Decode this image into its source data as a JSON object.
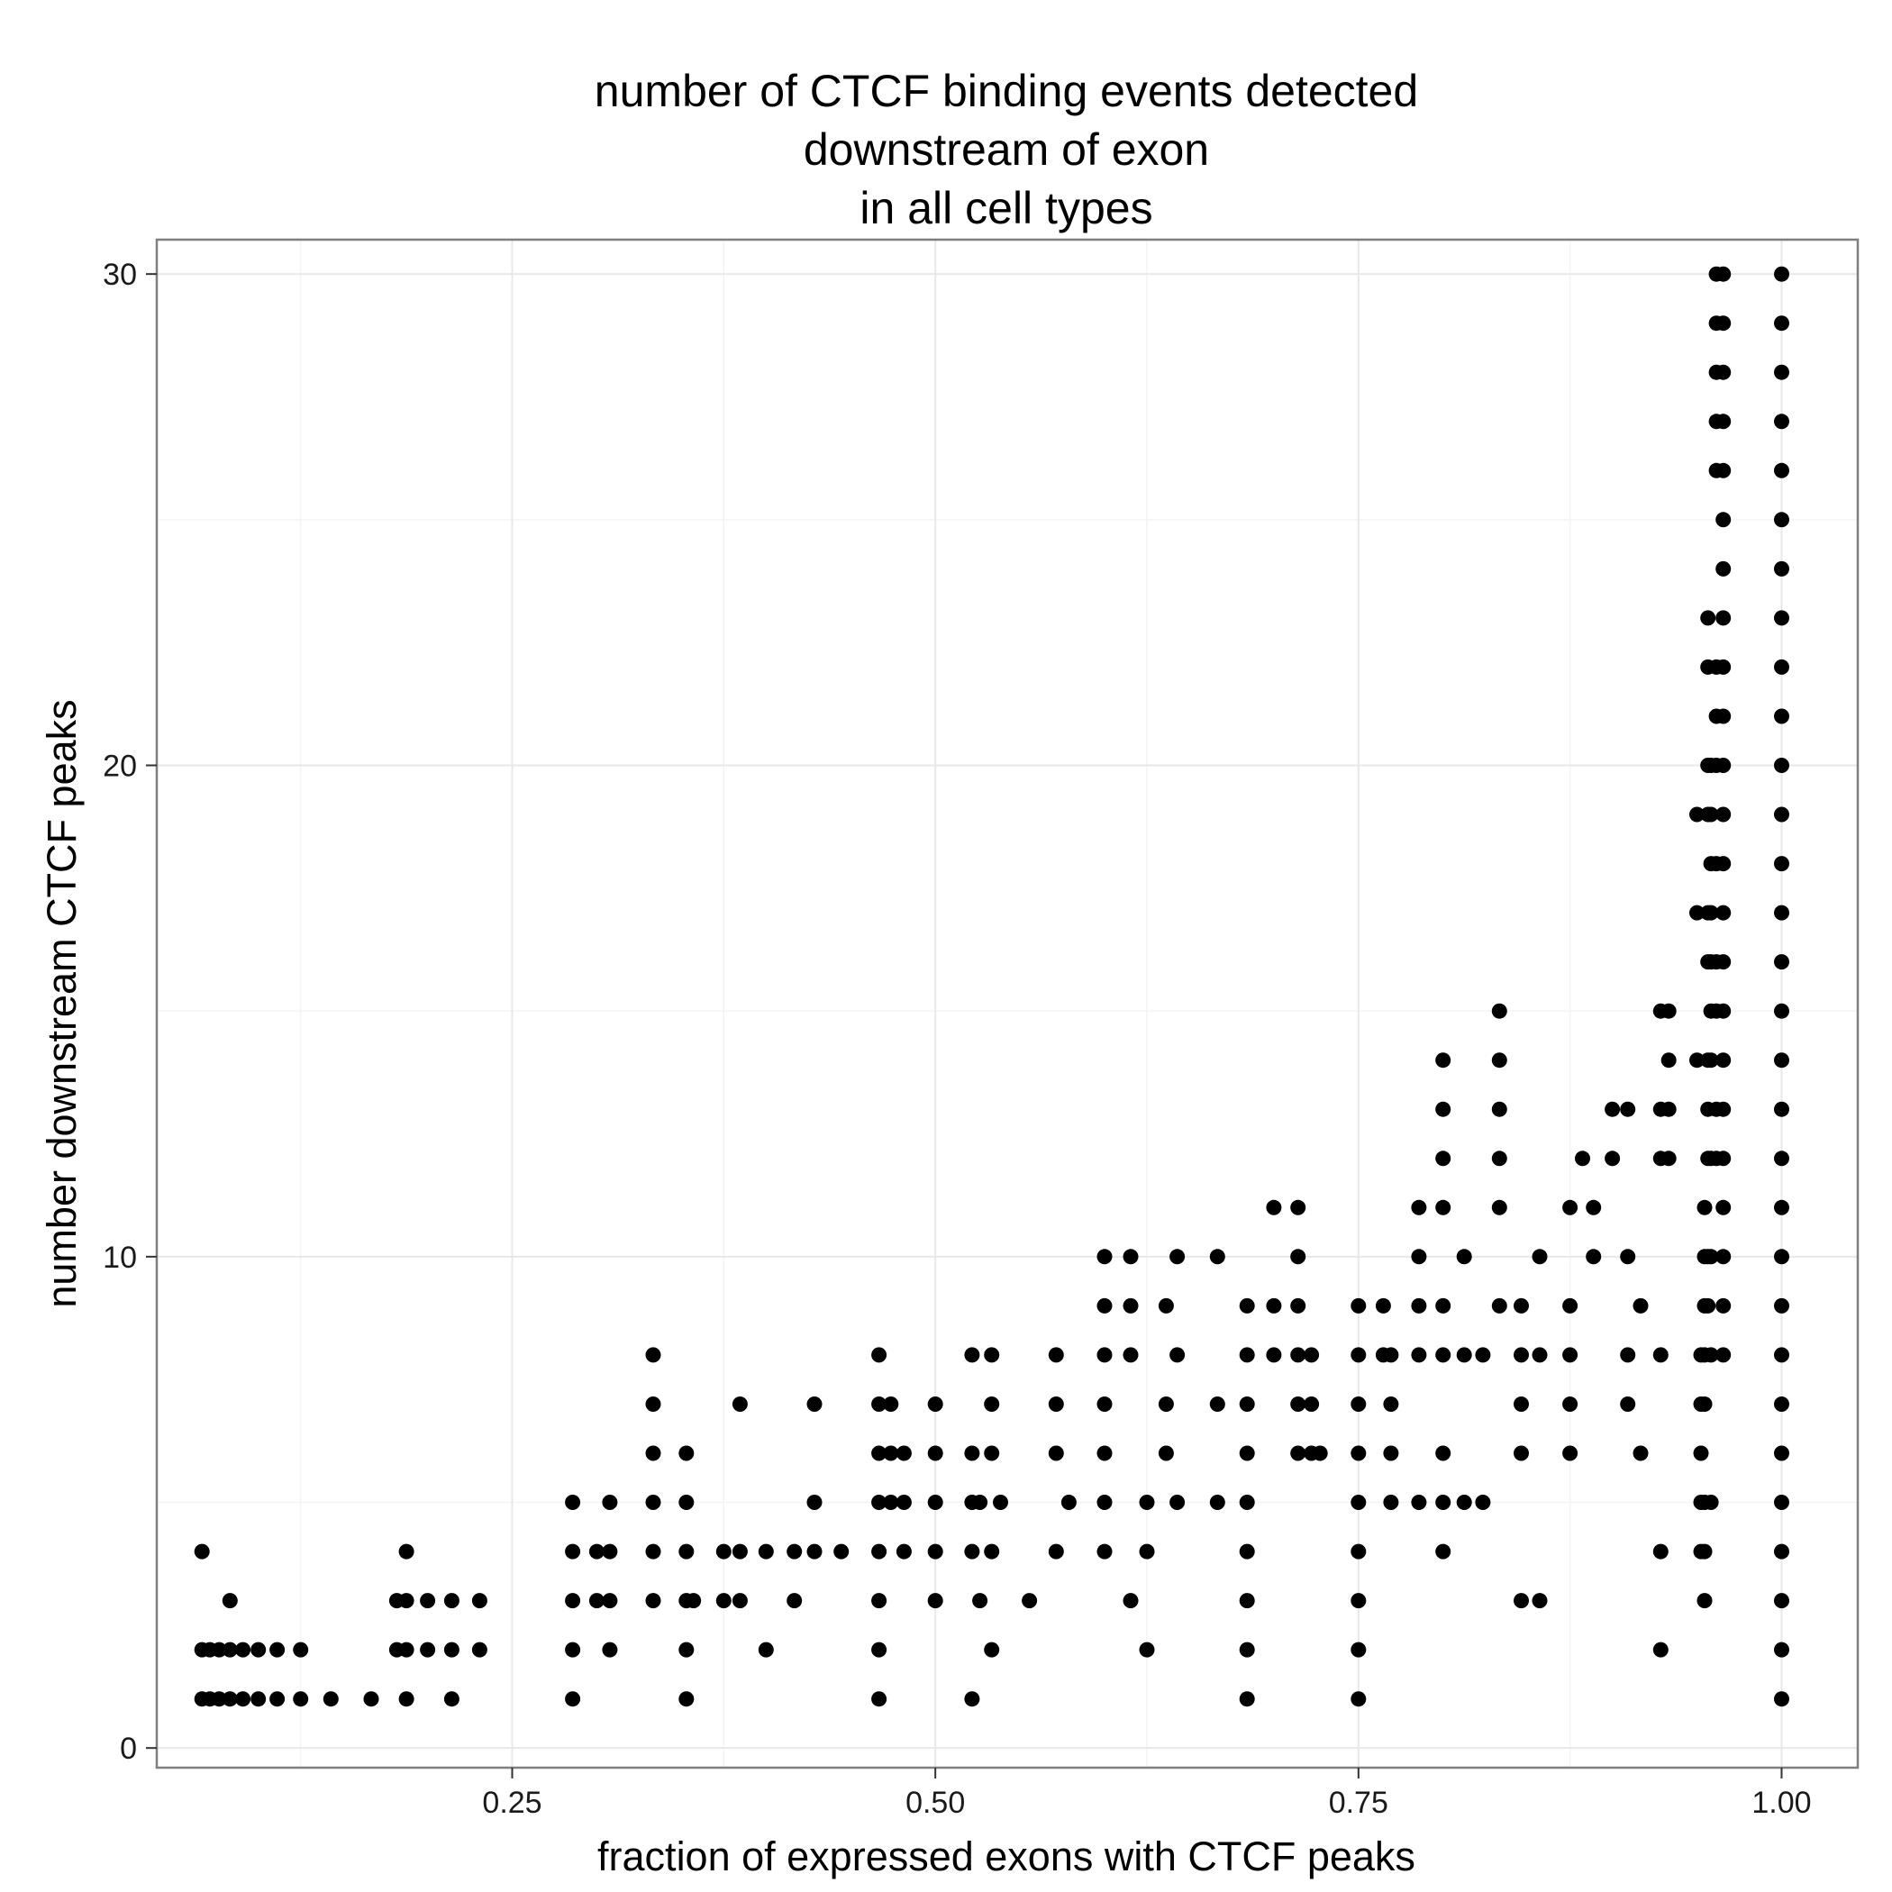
{
  "chart_data": {
    "type": "scatter",
    "title": [
      "number of CTCF binding events detected",
      "downstream of exon",
      "in all cell types"
    ],
    "xlabel": "fraction of expressed exons with CTCF peaks",
    "ylabel": "number downstream CTCF peaks",
    "xlim": [
      0.04,
      1.045
    ],
    "ylim": [
      -0.4,
      30.7
    ],
    "xticks": [
      0.25,
      0.5,
      0.75,
      1.0
    ],
    "xtick_labels": [
      "0.25",
      "0.50",
      "0.75",
      "1.00"
    ],
    "yticks": [
      0,
      10,
      20,
      30
    ],
    "ytick_labels": [
      "0",
      "10",
      "20",
      "30"
    ],
    "grid": true,
    "legend": "none",
    "colors": {
      "point": "#000000",
      "panel_border": "#7f7f7f"
    },
    "points": [
      [
        0.0667,
        1
      ],
      [
        0.0667,
        2
      ],
      [
        0.0667,
        4
      ],
      [
        0.0714,
        1
      ],
      [
        0.0714,
        2
      ],
      [
        0.0769,
        1
      ],
      [
        0.0769,
        2
      ],
      [
        0.0833,
        1
      ],
      [
        0.0833,
        2
      ],
      [
        0.0833,
        3
      ],
      [
        0.0909,
        1
      ],
      [
        0.0909,
        2
      ],
      [
        0.1,
        1
      ],
      [
        0.1,
        2
      ],
      [
        0.1111,
        1
      ],
      [
        0.1111,
        2
      ],
      [
        0.125,
        1
      ],
      [
        0.125,
        2
      ],
      [
        0.1429,
        1
      ],
      [
        0.1667,
        1
      ],
      [
        0.1818,
        2
      ],
      [
        0.1818,
        3
      ],
      [
        0.1875,
        1
      ],
      [
        0.1875,
        2
      ],
      [
        0.1875,
        3
      ],
      [
        0.1875,
        4
      ],
      [
        0.2,
        2
      ],
      [
        0.2,
        3
      ],
      [
        0.2143,
        1
      ],
      [
        0.2143,
        2
      ],
      [
        0.2143,
        3
      ],
      [
        0.2308,
        2
      ],
      [
        0.2308,
        3
      ],
      [
        0.2857,
        1
      ],
      [
        0.2857,
        2
      ],
      [
        0.2857,
        3
      ],
      [
        0.2857,
        4
      ],
      [
        0.2857,
        5
      ],
      [
        0.3,
        3
      ],
      [
        0.3,
        4
      ],
      [
        0.3077,
        2
      ],
      [
        0.3077,
        3
      ],
      [
        0.3077,
        4
      ],
      [
        0.3077,
        5
      ],
      [
        0.3333,
        3
      ],
      [
        0.3333,
        4
      ],
      [
        0.3333,
        5
      ],
      [
        0.3333,
        6
      ],
      [
        0.3333,
        7
      ],
      [
        0.3333,
        8
      ],
      [
        0.3529,
        1
      ],
      [
        0.3529,
        2
      ],
      [
        0.3529,
        3
      ],
      [
        0.3529,
        4
      ],
      [
        0.3529,
        5
      ],
      [
        0.3529,
        6
      ],
      [
        0.3571,
        3
      ],
      [
        0.375,
        3
      ],
      [
        0.375,
        4
      ],
      [
        0.3846,
        3
      ],
      [
        0.3846,
        4
      ],
      [
        0.3846,
        7
      ],
      [
        0.4,
        2
      ],
      [
        0.4,
        4
      ],
      [
        0.4167,
        3
      ],
      [
        0.4167,
        4
      ],
      [
        0.4286,
        4
      ],
      [
        0.4286,
        5
      ],
      [
        0.4286,
        7
      ],
      [
        0.4444,
        4
      ],
      [
        0.4667,
        1
      ],
      [
        0.4667,
        2
      ],
      [
        0.4667,
        3
      ],
      [
        0.4667,
        4
      ],
      [
        0.4667,
        5
      ],
      [
        0.4667,
        6
      ],
      [
        0.4667,
        7
      ],
      [
        0.4667,
        8
      ],
      [
        0.4737,
        5
      ],
      [
        0.4737,
        6
      ],
      [
        0.4737,
        7
      ],
      [
        0.4815,
        4
      ],
      [
        0.4815,
        5
      ],
      [
        0.4815,
        6
      ],
      [
        0.5,
        3
      ],
      [
        0.5,
        4
      ],
      [
        0.5,
        5
      ],
      [
        0.5,
        6
      ],
      [
        0.5,
        7
      ],
      [
        0.5217,
        1
      ],
      [
        0.5217,
        4
      ],
      [
        0.5217,
        5
      ],
      [
        0.5217,
        6
      ],
      [
        0.5217,
        8
      ],
      [
        0.5263,
        3
      ],
      [
        0.5263,
        5
      ],
      [
        0.5333,
        2
      ],
      [
        0.5333,
        4
      ],
      [
        0.5333,
        6
      ],
      [
        0.5333,
        7
      ],
      [
        0.5333,
        8
      ],
      [
        0.5385,
        5
      ],
      [
        0.5556,
        3
      ],
      [
        0.5714,
        4
      ],
      [
        0.5714,
        6
      ],
      [
        0.5714,
        7
      ],
      [
        0.5714,
        8
      ],
      [
        0.5789,
        5
      ],
      [
        0.6,
        4
      ],
      [
        0.6,
        5
      ],
      [
        0.6,
        6
      ],
      [
        0.6,
        7
      ],
      [
        0.6,
        8
      ],
      [
        0.6,
        9
      ],
      [
        0.6,
        10
      ],
      [
        0.6154,
        3
      ],
      [
        0.6154,
        8
      ],
      [
        0.6154,
        9
      ],
      [
        0.6154,
        10
      ],
      [
        0.625,
        2
      ],
      [
        0.625,
        4
      ],
      [
        0.625,
        5
      ],
      [
        0.6364,
        6
      ],
      [
        0.6364,
        7
      ],
      [
        0.6364,
        9
      ],
      [
        0.6429,
        5
      ],
      [
        0.6429,
        8
      ],
      [
        0.6429,
        10
      ],
      [
        0.6667,
        5
      ],
      [
        0.6667,
        7
      ],
      [
        0.6667,
        10
      ],
      [
        0.6842,
        1
      ],
      [
        0.6842,
        2
      ],
      [
        0.6842,
        3
      ],
      [
        0.6842,
        4
      ],
      [
        0.6842,
        5
      ],
      [
        0.6842,
        6
      ],
      [
        0.6842,
        7
      ],
      [
        0.6842,
        8
      ],
      [
        0.6842,
        9
      ],
      [
        0.7,
        8
      ],
      [
        0.7,
        9
      ],
      [
        0.7,
        11
      ],
      [
        0.7143,
        6
      ],
      [
        0.7143,
        7
      ],
      [
        0.7143,
        8
      ],
      [
        0.7143,
        9
      ],
      [
        0.7143,
        10
      ],
      [
        0.7143,
        11
      ],
      [
        0.7222,
        6
      ],
      [
        0.7222,
        7
      ],
      [
        0.7222,
        8
      ],
      [
        0.7273,
        6
      ],
      [
        0.75,
        1
      ],
      [
        0.75,
        2
      ],
      [
        0.75,
        3
      ],
      [
        0.75,
        4
      ],
      [
        0.75,
        5
      ],
      [
        0.75,
        6
      ],
      [
        0.75,
        7
      ],
      [
        0.75,
        8
      ],
      [
        0.75,
        9
      ],
      [
        0.7647,
        8
      ],
      [
        0.7647,
        9
      ],
      [
        0.7692,
        5
      ],
      [
        0.7692,
        6
      ],
      [
        0.7692,
        7
      ],
      [
        0.7692,
        8
      ],
      [
        0.7857,
        5
      ],
      [
        0.7857,
        8
      ],
      [
        0.7857,
        9
      ],
      [
        0.7857,
        10
      ],
      [
        0.7857,
        11
      ],
      [
        0.8,
        4
      ],
      [
        0.8,
        5
      ],
      [
        0.8,
        6
      ],
      [
        0.8,
        8
      ],
      [
        0.8,
        9
      ],
      [
        0.8,
        11
      ],
      [
        0.8,
        12
      ],
      [
        0.8,
        13
      ],
      [
        0.8,
        14
      ],
      [
        0.8125,
        5
      ],
      [
        0.8125,
        8
      ],
      [
        0.8125,
        10
      ],
      [
        0.8235,
        5
      ],
      [
        0.8235,
        8
      ],
      [
        0.8333,
        9
      ],
      [
        0.8333,
        11
      ],
      [
        0.8333,
        12
      ],
      [
        0.8333,
        13
      ],
      [
        0.8333,
        14
      ],
      [
        0.8333,
        15
      ],
      [
        0.8462,
        3
      ],
      [
        0.8462,
        6
      ],
      [
        0.8462,
        7
      ],
      [
        0.8462,
        8
      ],
      [
        0.8462,
        9
      ],
      [
        0.8571,
        3
      ],
      [
        0.8571,
        8
      ],
      [
        0.8571,
        10
      ],
      [
        0.875,
        6
      ],
      [
        0.875,
        7
      ],
      [
        0.875,
        8
      ],
      [
        0.875,
        9
      ],
      [
        0.875,
        11
      ],
      [
        0.8824,
        12
      ],
      [
        0.8889,
        10
      ],
      [
        0.8889,
        11
      ],
      [
        0.9,
        12
      ],
      [
        0.9,
        13
      ],
      [
        0.9091,
        7
      ],
      [
        0.9091,
        8
      ],
      [
        0.9091,
        10
      ],
      [
        0.9091,
        13
      ],
      [
        0.9167,
        6
      ],
      [
        0.9167,
        9
      ],
      [
        0.9286,
        2
      ],
      [
        0.9286,
        4
      ],
      [
        0.9286,
        8
      ],
      [
        0.9286,
        12
      ],
      [
        0.9286,
        13
      ],
      [
        0.9286,
        15
      ],
      [
        0.9333,
        12
      ],
      [
        0.9333,
        13
      ],
      [
        0.9333,
        14
      ],
      [
        0.9333,
        15
      ],
      [
        0.95,
        14
      ],
      [
        0.95,
        17
      ],
      [
        0.95,
        19
      ],
      [
        0.9524,
        4
      ],
      [
        0.9524,
        5
      ],
      [
        0.9524,
        6
      ],
      [
        0.9524,
        7
      ],
      [
        0.9524,
        8
      ],
      [
        0.9545,
        3
      ],
      [
        0.9545,
        4
      ],
      [
        0.9545,
        5
      ],
      [
        0.9545,
        7
      ],
      [
        0.9545,
        8
      ],
      [
        0.9545,
        9
      ],
      [
        0.9545,
        10
      ],
      [
        0.9545,
        11
      ],
      [
        0.9583,
        5
      ],
      [
        0.9583,
        8
      ],
      [
        0.9583,
        10
      ],
      [
        0.9583,
        12
      ],
      [
        0.9583,
        14
      ],
      [
        0.9583,
        15
      ],
      [
        0.9583,
        16
      ],
      [
        0.9583,
        17
      ],
      [
        0.9583,
        18
      ],
      [
        0.9583,
        19
      ],
      [
        0.9583,
        20
      ],
      [
        0.9565,
        9
      ],
      [
        0.9565,
        10
      ],
      [
        0.9565,
        12
      ],
      [
        0.9565,
        13
      ],
      [
        0.9565,
        14
      ],
      [
        0.9565,
        16
      ],
      [
        0.9565,
        17
      ],
      [
        0.9565,
        19
      ],
      [
        0.9565,
        20
      ],
      [
        0.9565,
        22
      ],
      [
        0.9565,
        23
      ],
      [
        0.9615,
        12
      ],
      [
        0.9615,
        13
      ],
      [
        0.9615,
        15
      ],
      [
        0.9615,
        16
      ],
      [
        0.9615,
        18
      ],
      [
        0.9615,
        20
      ],
      [
        0.9615,
        21
      ],
      [
        0.9615,
        22
      ],
      [
        0.9615,
        26
      ],
      [
        0.9615,
        27
      ],
      [
        0.9615,
        28
      ],
      [
        0.9615,
        29
      ],
      [
        0.9615,
        30
      ],
      [
        0.9655,
        8
      ],
      [
        0.9655,
        9
      ],
      [
        0.9655,
        10
      ],
      [
        0.9655,
        11
      ],
      [
        0.9655,
        12
      ],
      [
        0.9655,
        13
      ],
      [
        0.9655,
        14
      ],
      [
        0.9655,
        15
      ],
      [
        0.9655,
        16
      ],
      [
        0.9655,
        17
      ],
      [
        0.9655,
        18
      ],
      [
        0.9655,
        19
      ],
      [
        0.9655,
        20
      ],
      [
        0.9655,
        21
      ],
      [
        0.9655,
        22
      ],
      [
        0.9655,
        23
      ],
      [
        0.9655,
        24
      ],
      [
        0.9655,
        25
      ],
      [
        0.9655,
        26
      ],
      [
        0.9655,
        27
      ],
      [
        0.9655,
        28
      ],
      [
        0.9655,
        29
      ],
      [
        0.9655,
        30
      ],
      [
        1.0,
        1
      ],
      [
        1.0,
        2
      ],
      [
        1.0,
        3
      ],
      [
        1.0,
        4
      ],
      [
        1.0,
        5
      ],
      [
        1.0,
        6
      ],
      [
        1.0,
        7
      ],
      [
        1.0,
        8
      ],
      [
        1.0,
        9
      ],
      [
        1.0,
        10
      ],
      [
        1.0,
        11
      ],
      [
        1.0,
        12
      ],
      [
        1.0,
        13
      ],
      [
        1.0,
        14
      ],
      [
        1.0,
        15
      ],
      [
        1.0,
        16
      ],
      [
        1.0,
        17
      ],
      [
        1.0,
        18
      ],
      [
        1.0,
        19
      ],
      [
        1.0,
        20
      ],
      [
        1.0,
        21
      ],
      [
        1.0,
        22
      ],
      [
        1.0,
        23
      ],
      [
        1.0,
        24
      ],
      [
        1.0,
        25
      ],
      [
        1.0,
        26
      ],
      [
        1.0,
        27
      ],
      [
        1.0,
        28
      ],
      [
        1.0,
        29
      ],
      [
        1.0,
        30
      ]
    ]
  }
}
